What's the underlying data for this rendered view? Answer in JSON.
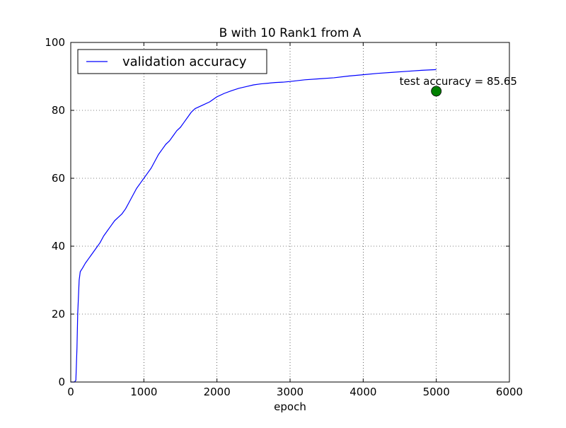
{
  "chart_data": {
    "type": "line",
    "title": "B with 10 Rank1 from A",
    "xlabel": "epoch",
    "ylabel": "",
    "xlim": [
      0,
      6000
    ],
    "ylim": [
      0,
      100
    ],
    "xticks": [
      "0",
      "1000",
      "2000",
      "3000",
      "4000",
      "5000",
      "6000"
    ],
    "yticks": [
      "0",
      "20",
      "40",
      "60",
      "80",
      "100"
    ],
    "grid": true,
    "legend_position": "top-left",
    "series": [
      {
        "name": "validation accuracy",
        "color": "#0000ff",
        "points": [
          [
            0,
            0
          ],
          [
            50,
            0
          ],
          [
            70,
            0.5
          ],
          [
            85,
            10
          ],
          [
            95,
            20
          ],
          [
            105,
            25
          ],
          [
            115,
            30
          ],
          [
            130,
            32.5
          ],
          [
            160,
            33.5
          ],
          [
            200,
            35
          ],
          [
            250,
            36.5
          ],
          [
            300,
            38
          ],
          [
            350,
            39.5
          ],
          [
            400,
            41
          ],
          [
            450,
            43
          ],
          [
            500,
            44.5
          ],
          [
            550,
            46
          ],
          [
            600,
            47.5
          ],
          [
            650,
            48.5
          ],
          [
            700,
            49.5
          ],
          [
            750,
            51
          ],
          [
            800,
            53
          ],
          [
            850,
            55
          ],
          [
            900,
            57
          ],
          [
            950,
            58.5
          ],
          [
            1000,
            60
          ],
          [
            1050,
            61.5
          ],
          [
            1100,
            63
          ],
          [
            1150,
            65
          ],
          [
            1200,
            67
          ],
          [
            1250,
            68.5
          ],
          [
            1300,
            70
          ],
          [
            1350,
            71
          ],
          [
            1400,
            72.5
          ],
          [
            1450,
            74
          ],
          [
            1500,
            75
          ],
          [
            1550,
            76.5
          ],
          [
            1600,
            78
          ],
          [
            1650,
            79.5
          ],
          [
            1700,
            80.5
          ],
          [
            1800,
            81.5
          ],
          [
            1900,
            82.5
          ],
          [
            2000,
            84
          ],
          [
            2100,
            85
          ],
          [
            2200,
            85.8
          ],
          [
            2300,
            86.5
          ],
          [
            2400,
            87
          ],
          [
            2500,
            87.5
          ],
          [
            2600,
            87.8
          ],
          [
            2700,
            88
          ],
          [
            2800,
            88.2
          ],
          [
            2900,
            88.3
          ],
          [
            3000,
            88.5
          ],
          [
            3200,
            89
          ],
          [
            3400,
            89.3
          ],
          [
            3600,
            89.6
          ],
          [
            3800,
            90.1
          ],
          [
            4000,
            90.5
          ],
          [
            4200,
            90.9
          ],
          [
            4400,
            91.2
          ],
          [
            4600,
            91.5
          ],
          [
            4800,
            91.8
          ],
          [
            5000,
            92
          ]
        ]
      }
    ],
    "marker": {
      "x": 5000,
      "y": 85.65,
      "color": "#008000",
      "label": "test accuracy = 85.65"
    }
  }
}
